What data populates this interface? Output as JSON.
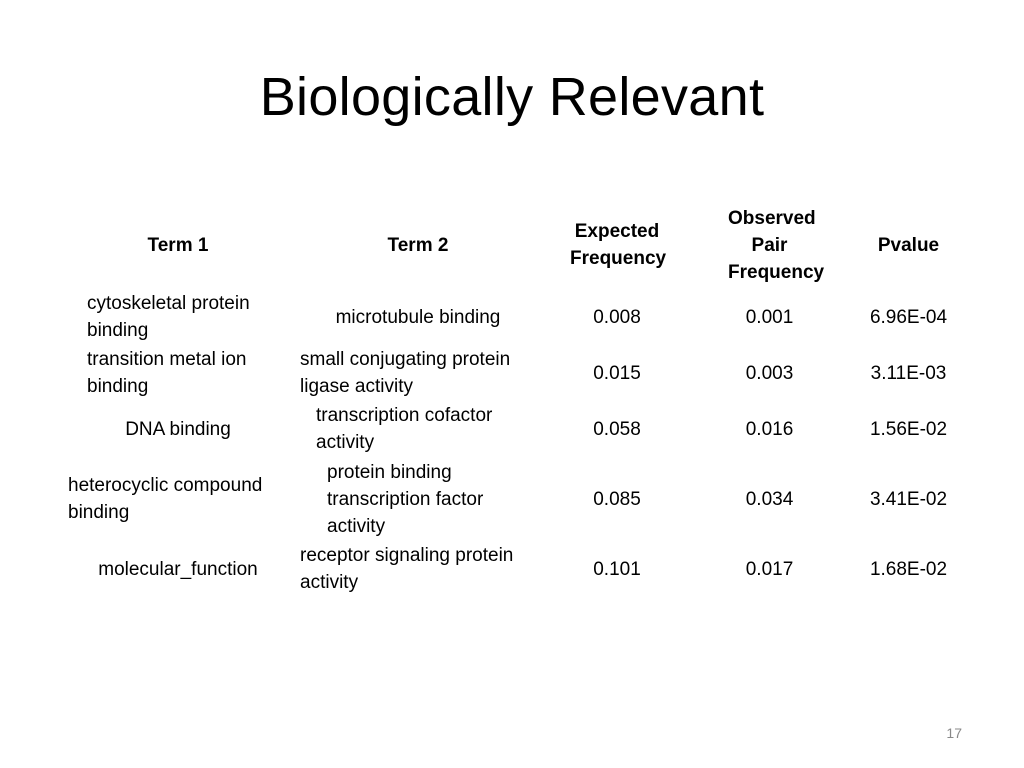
{
  "slide": {
    "title": "Biologically Relevant",
    "page_number": "17"
  },
  "table": {
    "headers": [
      "Term 1",
      "Term 2",
      "Expected Frequency",
      "Observed Pair Frequency",
      "Pvalue"
    ],
    "rows": [
      [
        "cytoskeletal protein binding",
        "microtubule binding",
        "0.008",
        "0.001",
        "6.96E-04"
      ],
      [
        "transition metal ion binding",
        "small conjugating protein ligase activity",
        "0.015",
        "0.003",
        "3.11E-03"
      ],
      [
        "DNA binding",
        "transcription cofactor activity",
        "0.058",
        "0.016",
        "1.56E-02"
      ],
      [
        "heterocyclic compound binding",
        "protein binding transcription factor activity",
        "0.085",
        "0.034",
        "3.41E-02"
      ],
      [
        "molecular_function",
        "receptor signaling protein activity",
        "0.101",
        "0.017",
        "1.68E-02"
      ]
    ]
  }
}
